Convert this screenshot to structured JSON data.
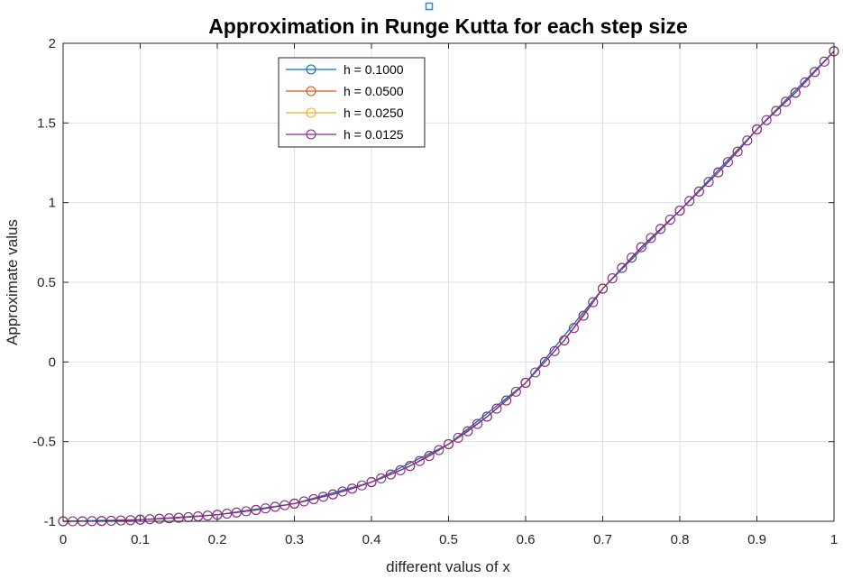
{
  "chart_data": {
    "type": "line",
    "title": "Approximation in Runge Kutta for each step size",
    "xlabel": "different valus of x",
    "ylabel": "Approximate valus",
    "xlim": [
      0,
      1
    ],
    "ylim": [
      -1,
      2
    ],
    "x_ticks": [
      "0",
      "0.1",
      "0.2",
      "0.3",
      "0.4",
      "0.5",
      "0.6",
      "0.7",
      "0.8",
      "0.9",
      "1"
    ],
    "y_ticks": [
      "-1",
      "-0.5",
      "0",
      "0.5",
      "1",
      "1.5",
      "2"
    ],
    "grid": true,
    "legend_position": "top-left inside",
    "series": [
      {
        "name": "h = 0.1000",
        "color": "#0072BD",
        "x": [
          0,
          0.1,
          0.2,
          0.3,
          0.4,
          0.5,
          0.6,
          0.7,
          0.8,
          0.9,
          1.0
        ],
        "y": [
          -1.0,
          -0.99,
          -0.959,
          -0.889,
          -0.754,
          -0.516,
          -0.131,
          0.46,
          0.95,
          1.46,
          1.95
        ]
      },
      {
        "name": "h = 0.0500",
        "color": "#D95319",
        "x": [
          0,
          0.05,
          0.1,
          0.15,
          0.2,
          0.25,
          0.3,
          0.35,
          0.4,
          0.45,
          0.5,
          0.55,
          0.6,
          0.65,
          0.7,
          0.75,
          0.8,
          0.85,
          0.9,
          0.95,
          1.0
        ],
        "y": [
          -1.0,
          -0.998,
          -0.99,
          -0.978,
          -0.959,
          -0.929,
          -0.889,
          -0.831,
          -0.754,
          -0.653,
          -0.516,
          -0.343,
          -0.131,
          0.135,
          0.46,
          0.72,
          0.95,
          1.19,
          1.46,
          1.69,
          1.95
        ]
      },
      {
        "name": "h = 0.0250",
        "color": "#EDB120",
        "x": [
          0,
          0.025,
          0.05,
          0.075,
          0.1,
          0.125,
          0.15,
          0.175,
          0.2,
          0.225,
          0.25,
          0.275,
          0.3,
          0.325,
          0.35,
          0.375,
          0.4,
          0.425,
          0.45,
          0.475,
          0.5,
          0.525,
          0.55,
          0.575,
          0.6,
          0.625,
          0.65,
          0.675,
          0.7,
          0.725,
          0.75,
          0.775,
          0.8,
          0.825,
          0.85,
          0.875,
          0.9,
          0.925,
          0.95,
          0.975,
          1.0
        ],
        "y": [
          -1.0,
          -0.9995,
          -0.998,
          -0.995,
          -0.99,
          -0.984,
          -0.978,
          -0.969,
          -0.959,
          -0.945,
          -0.929,
          -0.909,
          -0.889,
          -0.861,
          -0.831,
          -0.795,
          -0.754,
          -0.706,
          -0.653,
          -0.59,
          -0.516,
          -0.435,
          -0.343,
          -0.242,
          -0.131,
          0.0,
          0.135,
          0.29,
          0.46,
          0.59,
          0.72,
          0.835,
          0.95,
          1.07,
          1.19,
          1.32,
          1.46,
          1.575,
          1.69,
          1.82,
          1.95
        ]
      },
      {
        "name": "h = 0.0125",
        "color": "#7E2F8E",
        "x": [
          0,
          0.0125,
          0.025,
          0.0375,
          0.05,
          0.0625,
          0.075,
          0.0875,
          0.1,
          0.1125,
          0.125,
          0.1375,
          0.15,
          0.1625,
          0.175,
          0.1875,
          0.2,
          0.2125,
          0.225,
          0.2375,
          0.25,
          0.2625,
          0.275,
          0.2875,
          0.3,
          0.3125,
          0.325,
          0.3375,
          0.35,
          0.3625,
          0.375,
          0.3875,
          0.4,
          0.4125,
          0.425,
          0.4375,
          0.45,
          0.4625,
          0.475,
          0.4875,
          0.5,
          0.5125,
          0.525,
          0.5375,
          0.55,
          0.5625,
          0.575,
          0.5875,
          0.6,
          0.6125,
          0.625,
          0.6375,
          0.65,
          0.6625,
          0.675,
          0.6875,
          0.7,
          0.7125,
          0.725,
          0.7375,
          0.75,
          0.7625,
          0.775,
          0.7875,
          0.8,
          0.8125,
          0.825,
          0.8375,
          0.85,
          0.8625,
          0.875,
          0.8875,
          0.9,
          0.9125,
          0.925,
          0.9375,
          0.95,
          0.9625,
          0.975,
          0.9875,
          1.0
        ],
        "y": [
          -1.0,
          -1.0,
          -0.9995,
          -0.999,
          -0.998,
          -0.997,
          -0.995,
          -0.993,
          -0.99,
          -0.987,
          -0.984,
          -0.981,
          -0.978,
          -0.974,
          -0.969,
          -0.964,
          -0.959,
          -0.952,
          -0.945,
          -0.937,
          -0.929,
          -0.919,
          -0.909,
          -0.899,
          -0.889,
          -0.875,
          -0.861,
          -0.846,
          -0.831,
          -0.813,
          -0.795,
          -0.775,
          -0.754,
          -0.731,
          -0.706,
          -0.68,
          -0.653,
          -0.622,
          -0.59,
          -0.553,
          -0.516,
          -0.476,
          -0.435,
          -0.389,
          -0.343,
          -0.293,
          -0.242,
          -0.187,
          -0.131,
          -0.066,
          0.0,
          0.068,
          0.135,
          0.213,
          0.29,
          0.375,
          0.46,
          0.525,
          0.59,
          0.655,
          0.72,
          0.778,
          0.835,
          0.893,
          0.95,
          1.01,
          1.07,
          1.13,
          1.19,
          1.255,
          1.32,
          1.39,
          1.46,
          1.518,
          1.575,
          1.633,
          1.69,
          1.755,
          1.82,
          1.885,
          1.95
        ]
      }
    ]
  }
}
